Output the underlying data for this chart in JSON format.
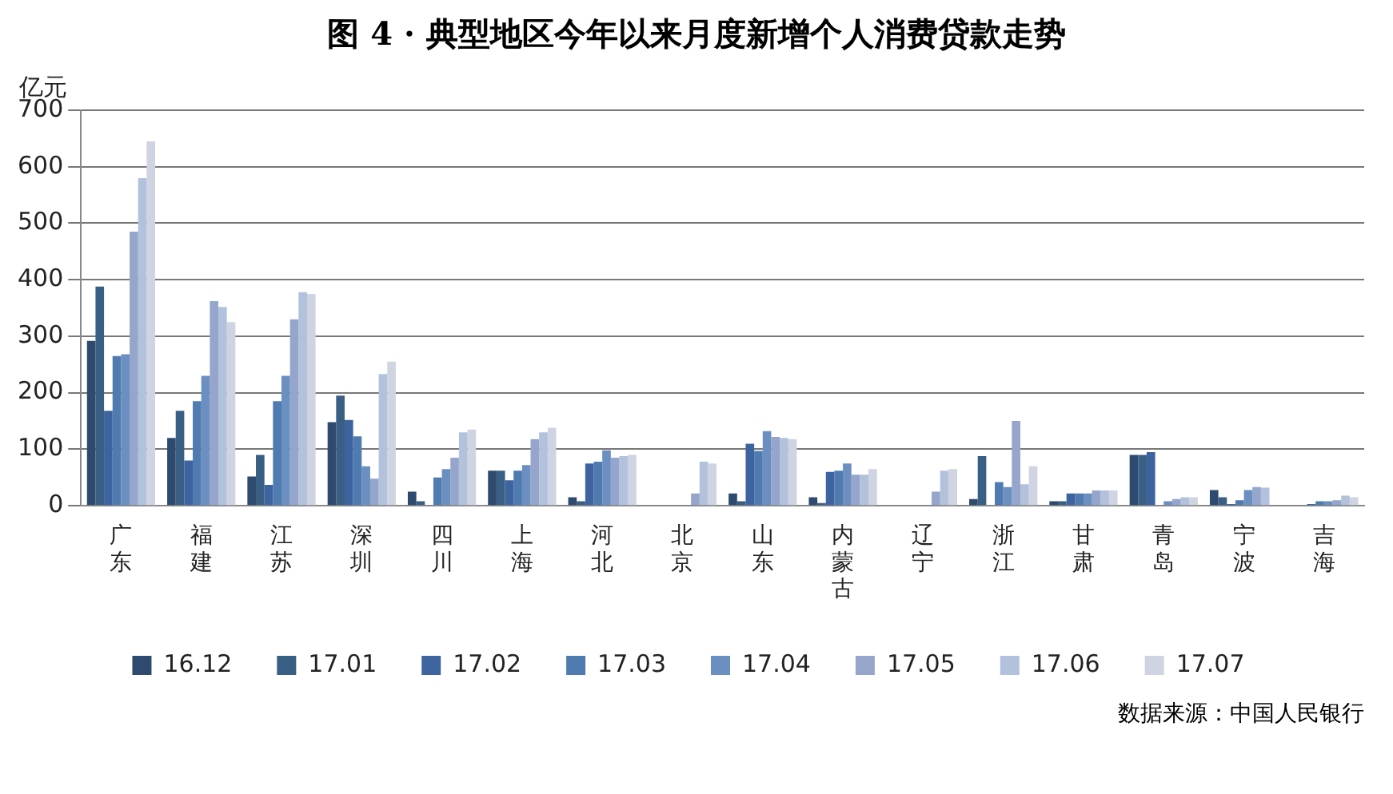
{
  "chart_data": {
    "type": "bar",
    "title": "图 4 · 典型地区今年以来月度新增个人消费贷款走势",
    "ylabel": "亿元",
    "categories": [
      "广东",
      "福建",
      "江苏",
      "深圳",
      "四川",
      "上海",
      "河北",
      "北京",
      "山东",
      "内蒙古",
      "辽宁",
      "浙江",
      "甘肃",
      "青岛",
      "宁波",
      "吉海"
    ],
    "series": [
      {
        "name": "16.12",
        "color": "#2e4a6e",
        "values": [
          292,
          120,
          52,
          148,
          25,
          62,
          15,
          0,
          22,
          15,
          0,
          12,
          8,
          90,
          28,
          0
        ]
      },
      {
        "name": "17.01",
        "color": "#3a5f85",
        "values": [
          388,
          168,
          90,
          195,
          8,
          62,
          8,
          0,
          8,
          5,
          null,
          88,
          8,
          90,
          15,
          0
        ]
      },
      {
        "name": "17.02",
        "color": "#3e64a0",
        "values": [
          168,
          80,
          37,
          152,
          0,
          45,
          75,
          0,
          110,
          60,
          0,
          0,
          22,
          95,
          3,
          3
        ]
      },
      {
        "name": "17.03",
        "color": "#4f7bb0",
        "values": [
          265,
          185,
          185,
          123,
          50,
          62,
          78,
          0,
          97,
          62,
          0,
          42,
          22,
          null,
          10,
          8
        ]
      },
      {
        "name": "17.04",
        "color": "#6a8fc0",
        "values": [
          268,
          230,
          230,
          70,
          65,
          72,
          98,
          0,
          132,
          75,
          0,
          33,
          22,
          8,
          28,
          8
        ]
      },
      {
        "name": "17.05",
        "color": "#95a5cc",
        "values": [
          485,
          362,
          330,
          48,
          85,
          118,
          85,
          22,
          122,
          55,
          25,
          150,
          27,
          12,
          33,
          10
        ]
      },
      {
        "name": "17.06",
        "color": "#b2c2dc",
        "values": [
          580,
          352,
          378,
          233,
          130,
          130,
          88,
          78,
          120,
          55,
          62,
          38,
          27,
          15,
          32,
          18
        ]
      },
      {
        "name": "17.07",
        "color": "#d0d4e2",
        "values": [
          645,
          325,
          375,
          255,
          135,
          138,
          90,
          75,
          118,
          65,
          65,
          70,
          27,
          15,
          0,
          15
        ]
      }
    ],
    "ylim": [
      0,
      700
    ],
    "yticks": [
      0,
      100,
      200,
      300,
      400,
      500,
      600,
      700
    ],
    "grid": "y",
    "legend": "bottom",
    "annotations": [
      "数据来源：中国人民银行"
    ]
  }
}
